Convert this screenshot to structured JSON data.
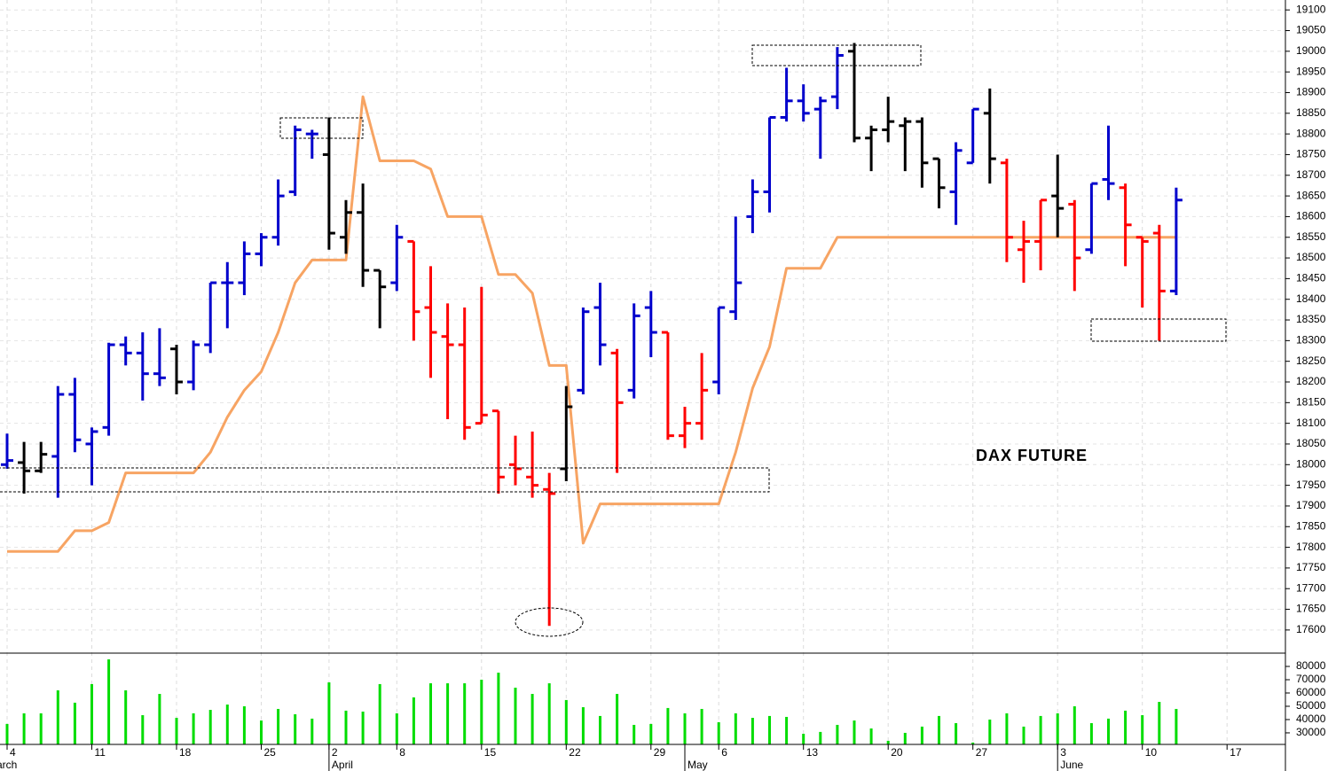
{
  "chart_data": [
    {
      "type": "ohlc",
      "title": "DAX FUTURE",
      "categories": [
        "4",
        null,
        null,
        null,
        null,
        "11",
        null,
        null,
        null,
        null,
        "18",
        null,
        null,
        null,
        null,
        "25",
        null,
        null,
        null,
        "2",
        null,
        null,
        null,
        "8",
        null,
        null,
        null,
        null,
        "15",
        null,
        null,
        null,
        null,
        "22",
        null,
        null,
        null,
        null,
        "29",
        null,
        null,
        null,
        "6",
        null,
        null,
        null,
        null,
        "13",
        null,
        null,
        null,
        null,
        "20",
        null,
        null,
        null,
        null,
        "27",
        null,
        null,
        null,
        null,
        "3",
        null,
        null,
        null,
        null,
        "10",
        null,
        null,
        null,
        null,
        "17"
      ],
      "months": [
        "arch",
        null,
        null,
        null,
        null,
        null,
        null,
        null,
        null,
        null,
        null,
        null,
        null,
        null,
        null,
        null,
        null,
        null,
        null,
        "April",
        null,
        null,
        null,
        null,
        null,
        null,
        null,
        null,
        null,
        null,
        null,
        null,
        null,
        null,
        null,
        null,
        null,
        null,
        null,
        null,
        "May",
        null,
        null,
        null,
        null,
        null,
        null,
        null,
        null,
        null,
        null,
        null,
        null,
        null,
        null,
        null,
        null,
        null,
        null,
        null,
        null,
        null,
        "June",
        null,
        null,
        null,
        null,
        null,
        null,
        null,
        null,
        null,
        null
      ],
      "open": [
        18000,
        18005,
        17985,
        18020,
        18170,
        18050,
        18090,
        18290,
        18270,
        18220,
        18280,
        18200,
        18290,
        18440,
        18440,
        18510,
        18550,
        18660,
        18800,
        18750,
        18550,
        18610,
        18470,
        18440,
        18540,
        18380,
        18310,
        18290,
        18100,
        18130,
        18000,
        17970,
        17940,
        17990,
        18180,
        18380,
        18270,
        18180,
        18380,
        18320,
        18070,
        18100,
        18200,
        18370,
        18600,
        18660,
        18840,
        18880,
        18860,
        18890,
        19000,
        18790,
        18810,
        18820,
        18830,
        18740,
        18660,
        18730,
        18850,
        18730,
        18520,
        18540,
        18650,
        18630,
        18520,
        18690,
        18670,
        18550,
        18560,
        18420,
        null,
        null,
        null
      ],
      "high": [
        18075,
        18055,
        18055,
        18190,
        18210,
        18090,
        18295,
        18310,
        18320,
        18330,
        18290,
        18300,
        18440,
        18490,
        18540,
        18560,
        18690,
        18820,
        18810,
        18840,
        18640,
        18680,
        18470,
        18580,
        18540,
        18480,
        18390,
        18380,
        18430,
        18130,
        18070,
        18080,
        17980,
        18190,
        18380,
        18440,
        18280,
        18390,
        18420,
        18320,
        18140,
        18270,
        18380,
        18600,
        18690,
        18840,
        18960,
        18920,
        18890,
        19010,
        19020,
        18820,
        18890,
        18840,
        18840,
        18740,
        18780,
        18860,
        18910,
        18740,
        18590,
        18640,
        18750,
        18640,
        18680,
        18820,
        18680,
        18550,
        18580,
        18670,
        null,
        null,
        null
      ],
      "low": [
        17990,
        17930,
        17980,
        17920,
        18030,
        17950,
        18070,
        18240,
        18155,
        18190,
        18170,
        18180,
        18270,
        18330,
        18410,
        18480,
        18530,
        18650,
        18740,
        18520,
        18510,
        18430,
        18330,
        18420,
        18300,
        18210,
        18110,
        18060,
        18100,
        17930,
        17950,
        17920,
        17610,
        17960,
        18170,
        18240,
        17980,
        18160,
        18260,
        18060,
        18040,
        18060,
        18170,
        18350,
        18560,
        18610,
        18830,
        18830,
        18740,
        18860,
        18780,
        18710,
        18780,
        18710,
        18670,
        18620,
        18580,
        18730,
        18680,
        18490,
        18440,
        18470,
        18550,
        18420,
        18510,
        18640,
        18480,
        18380,
        18300,
        18410,
        null,
        null,
        null
      ],
      "close": [
        18010,
        17985,
        18025,
        18170,
        18060,
        18080,
        18290,
        18270,
        18220,
        18210,
        18200,
        18290,
        18440,
        18440,
        18510,
        18550,
        18650,
        18810,
        18800,
        18560,
        18610,
        18470,
        18430,
        18550,
        18370,
        18320,
        18290,
        18090,
        18120,
        17970,
        17990,
        17950,
        17930,
        18140,
        18370,
        18290,
        18150,
        18360,
        18320,
        18070,
        18100,
        18180,
        18380,
        18440,
        18660,
        18840,
        18880,
        18850,
        18880,
        18990,
        18790,
        18810,
        18830,
        18830,
        18730,
        18670,
        18760,
        18860,
        18740,
        18550,
        18540,
        18640,
        18620,
        18500,
        18680,
        18680,
        18580,
        18540,
        18420,
        18640,
        null,
        null,
        null
      ],
      "bar_colors": [
        "#0000cc",
        "#000000",
        "#000000",
        "#0000cc",
        "#0000cc",
        "#0000cc",
        "#0000cc",
        "#0000cc",
        "#0000cc",
        "#0000cc",
        "#000000",
        "#0000cc",
        "#0000cc",
        "#0000cc",
        "#0000cc",
        "#0000cc",
        "#0000cc",
        "#0000cc",
        "#0000cc",
        "#000000",
        "#000000",
        "#000000",
        "#000000",
        "#0000cc",
        "#ff0000",
        "#ff0000",
        "#ff0000",
        "#ff0000",
        "#ff0000",
        "#ff0000",
        "#ff0000",
        "#ff0000",
        "#ff0000",
        "#000000",
        "#0000cc",
        "#0000cc",
        "#ff0000",
        "#0000cc",
        "#0000cc",
        "#ff0000",
        "#ff0000",
        "#ff0000",
        "#0000cc",
        "#0000cc",
        "#0000cc",
        "#0000cc",
        "#0000cc",
        "#0000cc",
        "#0000cc",
        "#0000cc",
        "#000000",
        "#000000",
        "#000000",
        "#000000",
        "#000000",
        "#000000",
        "#0000cc",
        "#0000cc",
        "#000000",
        "#ff0000",
        "#ff0000",
        "#ff0000",
        "#000000",
        "#ff0000",
        "#0000cc",
        "#0000cc",
        "#ff0000",
        "#ff0000",
        "#ff0000",
        "#0000cc",
        null,
        null,
        null
      ],
      "line": {
        "color": "#f7a463",
        "values": [
          17790,
          17790,
          17790,
          17790,
          17840,
          17840,
          17860,
          17980,
          17980,
          17980,
          17980,
          17980,
          18030,
          18115,
          18180,
          18225,
          18320,
          18440,
          18495,
          18495,
          18495,
          18890,
          18735,
          18735,
          18735,
          18715,
          18600,
          18600,
          18600,
          18460,
          18460,
          18415,
          18240,
          18240,
          17810,
          17905,
          17905,
          17905,
          17905,
          17905,
          17905,
          17905,
          17905,
          18030,
          18185,
          18285,
          18475,
          18475,
          18475,
          18550,
          18550,
          18550,
          18550,
          18550,
          18550,
          18550,
          18550,
          18550,
          18550,
          18550,
          18550,
          18550,
          18550,
          18550,
          18550,
          18550,
          18550,
          18550,
          18550,
          18550,
          null,
          null,
          null
        ]
      },
      "ylim": [
        17544,
        19124
      ],
      "yticks": [
        17600,
        17650,
        17700,
        17750,
        17800,
        17850,
        17900,
        17950,
        18000,
        18050,
        18100,
        18150,
        18200,
        18250,
        18300,
        18350,
        18400,
        18450,
        18500,
        18550,
        18600,
        18650,
        18700,
        18750,
        18800,
        18850,
        18900,
        18950,
        19000,
        19050,
        19100
      ],
      "grid": true
    },
    {
      "type": "bar",
      "color": "#00dd00",
      "values": [
        36700,
        44700,
        44700,
        62000,
        52700,
        66700,
        85300,
        62000,
        43300,
        59300,
        41300,
        44700,
        47300,
        51300,
        50000,
        39300,
        48000,
        44000,
        40700,
        68000,
        46700,
        46000,
        66700,
        44700,
        56700,
        67300,
        67300,
        67300,
        70000,
        75300,
        64000,
        59300,
        67300,
        54700,
        49300,
        42700,
        59300,
        36000,
        36700,
        48700,
        44700,
        48000,
        38000,
        44700,
        41300,
        42700,
        42000,
        29300,
        30700,
        36000,
        39300,
        33300,
        24000,
        30000,
        34700,
        42700,
        37300,
        22700,
        40000,
        44700,
        34700,
        42700,
        44700,
        50000,
        37300,
        40700,
        46700,
        43300,
        53300,
        48000,
        null,
        null,
        null
      ],
      "ylim": [
        21300,
        90000
      ],
      "yticks": [
        30000,
        40000,
        50000,
        60000,
        70000,
        80000
      ]
    }
  ]
}
